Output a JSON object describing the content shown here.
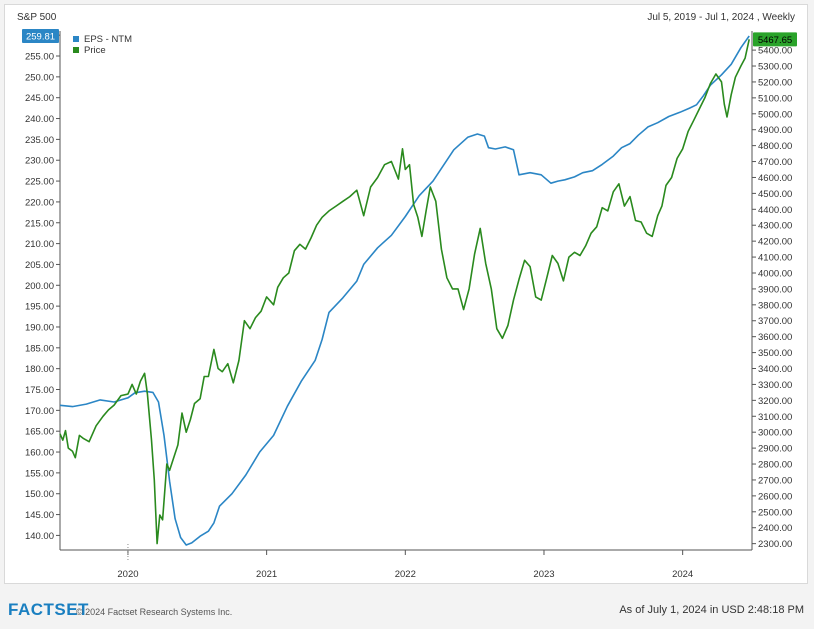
{
  "header": {
    "title": "S&P 500",
    "range": "Jul 5, 2019 - Jul 1, 2024 , Weekly"
  },
  "footer": {
    "logo": "FACTSET",
    "copyright": "© 2024 Factset Research Systems Inc.",
    "as_of": "As of July 1, 2024 in USD 2:48:18 PM"
  },
  "colors": {
    "eps": "#2b86c5",
    "price": "#2a8a1e",
    "grid": "#e6e6e6",
    "axis": "#555555"
  },
  "chart_data": {
    "type": "line",
    "title": "S&P 500",
    "legend_position": "top-left",
    "grid": false,
    "x_ticks": [
      {
        "label": "2020",
        "x": 2020.0
      },
      {
        "label": "2021",
        "x": 2021.0
      },
      {
        "label": "2022",
        "x": 2022.0
      },
      {
        "label": "2023",
        "x": 2023.0
      },
      {
        "label": "2024",
        "x": 2024.0
      }
    ],
    "xlim": [
      2019.51,
      2024.5
    ],
    "y_left": {
      "ylim": [
        136.5,
        261
      ],
      "ticks": [
        "260.00",
        "255.00",
        "250.00",
        "245.00",
        "240.00",
        "235.00",
        "230.00",
        "225.00",
        "220.00",
        "215.00",
        "210.00",
        "205.00",
        "200.00",
        "195.00",
        "190.00",
        "185.00",
        "180.00",
        "175.00",
        "170.00",
        "165.00",
        "160.00",
        "155.00",
        "150.00",
        "145.00",
        "140.00"
      ],
      "tick_values": [
        260,
        255,
        250,
        245,
        240,
        235,
        230,
        225,
        220,
        215,
        210,
        205,
        200,
        195,
        190,
        185,
        180,
        175,
        170,
        165,
        160,
        155,
        150,
        145,
        140
      ]
    },
    "y_right": {
      "ylim": [
        2260,
        5520
      ],
      "ticks": [
        "5400.00",
        "5300.00",
        "5200.00",
        "5100.00",
        "5000.00",
        "4900.00",
        "4800.00",
        "4700.00",
        "4600.00",
        "4500.00",
        "4400.00",
        "4300.00",
        "4200.00",
        "4100.00",
        "4000.00",
        "3900.00",
        "3800.00",
        "3700.00",
        "3600.00",
        "3500.00",
        "3400.00",
        "3300.00",
        "3200.00",
        "3100.00",
        "3000.00",
        "2900.00",
        "2800.00",
        "2700.00",
        "2600.00",
        "2500.00",
        "2400.00",
        "2300.00"
      ],
      "tick_values": [
        5400,
        5300,
        5200,
        5100,
        5000,
        4900,
        4800,
        4700,
        4600,
        4500,
        4400,
        4300,
        4200,
        4100,
        4000,
        3900,
        3800,
        3700,
        3600,
        3500,
        3400,
        3300,
        3200,
        3100,
        3000,
        2900,
        2800,
        2700,
        2600,
        2500,
        2400,
        2300
      ]
    },
    "series": [
      {
        "name": "EPS - NTM",
        "axis": "left",
        "last_label": "259.81",
        "points": [
          [
            2019.51,
            171.2
          ],
          [
            2019.6,
            170.9
          ],
          [
            2019.7,
            171.5
          ],
          [
            2019.8,
            172.5
          ],
          [
            2019.9,
            172.0
          ],
          [
            2020.0,
            173.0
          ],
          [
            2020.05,
            174.2
          ],
          [
            2020.12,
            174.6
          ],
          [
            2020.18,
            174.3
          ],
          [
            2020.22,
            172.0
          ],
          [
            2020.26,
            164.0
          ],
          [
            2020.3,
            153.0
          ],
          [
            2020.34,
            144.0
          ],
          [
            2020.38,
            139.5
          ],
          [
            2020.42,
            137.7
          ],
          [
            2020.46,
            138.2
          ],
          [
            2020.52,
            139.8
          ],
          [
            2020.58,
            141.0
          ],
          [
            2020.62,
            143.0
          ],
          [
            2020.66,
            147.0
          ],
          [
            2020.75,
            150.0
          ],
          [
            2020.85,
            154.5
          ],
          [
            2020.95,
            160.0
          ],
          [
            2021.05,
            164.0
          ],
          [
            2021.15,
            171.0
          ],
          [
            2021.25,
            177.0
          ],
          [
            2021.35,
            182.0
          ],
          [
            2021.4,
            187.0
          ],
          [
            2021.45,
            193.5
          ],
          [
            2021.55,
            197.0
          ],
          [
            2021.65,
            201.0
          ],
          [
            2021.7,
            205.0
          ],
          [
            2021.8,
            209.0
          ],
          [
            2021.9,
            212.0
          ],
          [
            2022.0,
            216.5
          ],
          [
            2022.1,
            221.5
          ],
          [
            2022.2,
            225.0
          ],
          [
            2022.3,
            230.0
          ],
          [
            2022.35,
            232.5
          ],
          [
            2022.45,
            235.5
          ],
          [
            2022.52,
            236.3
          ],
          [
            2022.57,
            235.8
          ],
          [
            2022.6,
            233.0
          ],
          [
            2022.65,
            232.7
          ],
          [
            2022.72,
            233.2
          ],
          [
            2022.78,
            232.5
          ],
          [
            2022.82,
            226.5
          ],
          [
            2022.9,
            227.0
          ],
          [
            2022.98,
            226.5
          ],
          [
            2023.05,
            224.5
          ],
          [
            2023.1,
            225.0
          ],
          [
            2023.15,
            225.3
          ],
          [
            2023.22,
            226.0
          ],
          [
            2023.28,
            227.0
          ],
          [
            2023.35,
            227.5
          ],
          [
            2023.42,
            229.0
          ],
          [
            2023.5,
            231.0
          ],
          [
            2023.56,
            233.0
          ],
          [
            2023.62,
            234.0
          ],
          [
            2023.68,
            236.0
          ],
          [
            2023.75,
            238.0
          ],
          [
            2023.82,
            239.0
          ],
          [
            2023.9,
            240.5
          ],
          [
            2023.98,
            241.5
          ],
          [
            2024.05,
            242.5
          ],
          [
            2024.1,
            243.3
          ],
          [
            2024.15,
            245.5
          ],
          [
            2024.2,
            248.0
          ],
          [
            2024.28,
            250.5
          ],
          [
            2024.35,
            253.0
          ],
          [
            2024.42,
            257.0
          ],
          [
            2024.48,
            259.81
          ]
        ]
      },
      {
        "name": "Price",
        "axis": "right",
        "last_label": "5467.65",
        "points": [
          [
            2019.51,
            2990
          ],
          [
            2019.53,
            2950
          ],
          [
            2019.55,
            3010
          ],
          [
            2019.57,
            2900
          ],
          [
            2019.6,
            2880
          ],
          [
            2019.62,
            2840
          ],
          [
            2019.65,
            2980
          ],
          [
            2019.68,
            2960
          ],
          [
            2019.72,
            2940
          ],
          [
            2019.77,
            3040
          ],
          [
            2019.82,
            3100
          ],
          [
            2019.86,
            3140
          ],
          [
            2019.9,
            3170
          ],
          [
            2019.95,
            3230
          ],
          [
            2020.0,
            3240
          ],
          [
            2020.03,
            3300
          ],
          [
            2020.06,
            3240
          ],
          [
            2020.09,
            3320
          ],
          [
            2020.12,
            3370
          ],
          [
            2020.14,
            3240
          ],
          [
            2020.17,
            2950
          ],
          [
            2020.19,
            2700
          ],
          [
            2020.21,
            2300
          ],
          [
            2020.23,
            2480
          ],
          [
            2020.25,
            2450
          ],
          [
            2020.28,
            2800
          ],
          [
            2020.3,
            2760
          ],
          [
            2020.33,
            2840
          ],
          [
            2020.36,
            2920
          ],
          [
            2020.39,
            3120
          ],
          [
            2020.42,
            3000
          ],
          [
            2020.45,
            3080
          ],
          [
            2020.48,
            3180
          ],
          [
            2020.52,
            3210
          ],
          [
            2020.55,
            3350
          ],
          [
            2020.58,
            3350
          ],
          [
            2020.62,
            3520
          ],
          [
            2020.65,
            3400
          ],
          [
            2020.68,
            3380
          ],
          [
            2020.72,
            3430
          ],
          [
            2020.76,
            3310
          ],
          [
            2020.8,
            3450
          ],
          [
            2020.84,
            3700
          ],
          [
            2020.88,
            3650
          ],
          [
            2020.92,
            3720
          ],
          [
            2020.96,
            3760
          ],
          [
            2021.0,
            3850
          ],
          [
            2021.05,
            3800
          ],
          [
            2021.08,
            3910
          ],
          [
            2021.12,
            3970
          ],
          [
            2021.16,
            4000
          ],
          [
            2021.2,
            4140
          ],
          [
            2021.24,
            4180
          ],
          [
            2021.28,
            4150
          ],
          [
            2021.32,
            4220
          ],
          [
            2021.36,
            4300
          ],
          [
            2021.4,
            4350
          ],
          [
            2021.45,
            4390
          ],
          [
            2021.5,
            4420
          ],
          [
            2021.55,
            4450
          ],
          [
            2021.6,
            4480
          ],
          [
            2021.65,
            4520
          ],
          [
            2021.7,
            4360
          ],
          [
            2021.75,
            4540
          ],
          [
            2021.8,
            4600
          ],
          [
            2021.85,
            4680
          ],
          [
            2021.9,
            4700
          ],
          [
            2021.95,
            4590
          ],
          [
            2021.98,
            4780
          ],
          [
            2022.0,
            4650
          ],
          [
            2022.03,
            4680
          ],
          [
            2022.06,
            4430
          ],
          [
            2022.09,
            4350
          ],
          [
            2022.12,
            4230
          ],
          [
            2022.15,
            4390
          ],
          [
            2022.18,
            4540
          ],
          [
            2022.22,
            4450
          ],
          [
            2022.26,
            4150
          ],
          [
            2022.3,
            3970
          ],
          [
            2022.34,
            3900
          ],
          [
            2022.38,
            3900
          ],
          [
            2022.42,
            3770
          ],
          [
            2022.46,
            3900
          ],
          [
            2022.5,
            4120
          ],
          [
            2022.54,
            4280
          ],
          [
            2022.58,
            4060
          ],
          [
            2022.62,
            3900
          ],
          [
            2022.66,
            3650
          ],
          [
            2022.7,
            3590
          ],
          [
            2022.74,
            3670
          ],
          [
            2022.78,
            3830
          ],
          [
            2022.82,
            3960
          ],
          [
            2022.86,
            4080
          ],
          [
            2022.9,
            4040
          ],
          [
            2022.94,
            3850
          ],
          [
            2022.98,
            3830
          ],
          [
            2023.02,
            3970
          ],
          [
            2023.06,
            4110
          ],
          [
            2023.1,
            4060
          ],
          [
            2023.14,
            3950
          ],
          [
            2023.18,
            4100
          ],
          [
            2023.22,
            4130
          ],
          [
            2023.26,
            4110
          ],
          [
            2023.3,
            4170
          ],
          [
            2023.34,
            4250
          ],
          [
            2023.38,
            4290
          ],
          [
            2023.42,
            4410
          ],
          [
            2023.46,
            4390
          ],
          [
            2023.5,
            4510
          ],
          [
            2023.54,
            4560
          ],
          [
            2023.58,
            4420
          ],
          [
            2023.62,
            4480
          ],
          [
            2023.66,
            4330
          ],
          [
            2023.7,
            4320
          ],
          [
            2023.74,
            4250
          ],
          [
            2023.78,
            4230
          ],
          [
            2023.82,
            4360
          ],
          [
            2023.85,
            4420
          ],
          [
            2023.88,
            4550
          ],
          [
            2023.92,
            4600
          ],
          [
            2023.96,
            4720
          ],
          [
            2024.0,
            4780
          ],
          [
            2024.04,
            4890
          ],
          [
            2024.08,
            4960
          ],
          [
            2024.12,
            5030
          ],
          [
            2024.16,
            5100
          ],
          [
            2024.2,
            5190
          ],
          [
            2024.24,
            5250
          ],
          [
            2024.28,
            5200
          ],
          [
            2024.3,
            5060
          ],
          [
            2024.32,
            4980
          ],
          [
            2024.35,
            5120
          ],
          [
            2024.38,
            5230
          ],
          [
            2024.42,
            5300
          ],
          [
            2024.45,
            5350
          ],
          [
            2024.48,
            5467.65
          ]
        ]
      }
    ]
  }
}
